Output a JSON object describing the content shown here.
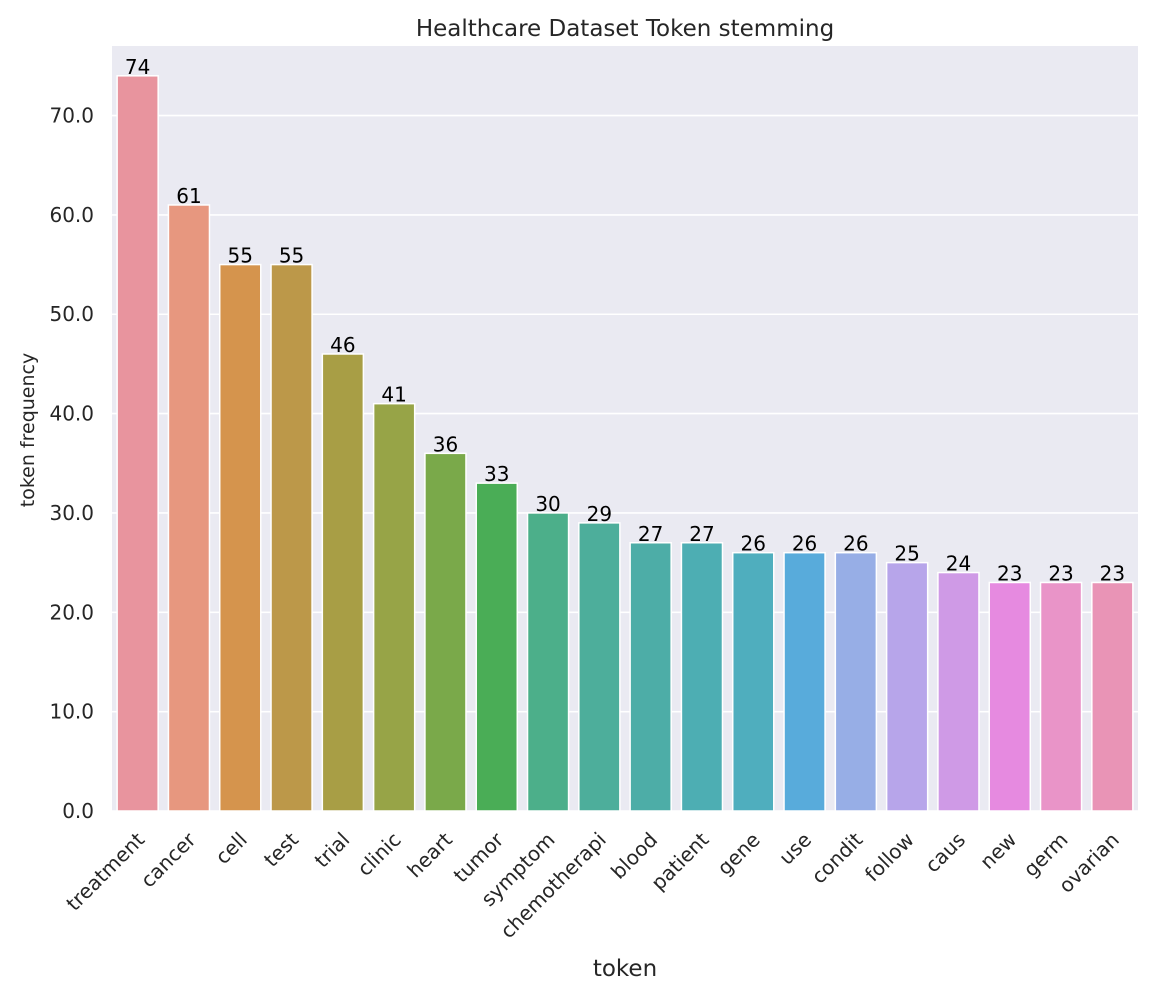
{
  "chart_data": {
    "type": "bar",
    "title": "Healthcare Dataset Token stemming",
    "xlabel": "token",
    "ylabel": "token frequency",
    "categories": [
      "treatment",
      "cancer",
      "cell",
      "test",
      "trial",
      "clinic",
      "heart",
      "tumor",
      "symptom",
      "chemotherapi",
      "blood",
      "patient",
      "gene",
      "use",
      "condit",
      "follow",
      "caus",
      "new",
      "germ",
      "ovarian"
    ],
    "values": [
      74,
      61,
      55,
      55,
      46,
      41,
      36,
      33,
      30,
      29,
      27,
      27,
      26,
      26,
      26,
      25,
      24,
      23,
      23,
      23
    ],
    "data_labels": [
      "74",
      "61",
      "55",
      "55",
      "46",
      "41",
      "36",
      "33",
      "30",
      "29",
      "27",
      "27",
      "26",
      "26",
      "26",
      "25",
      "24",
      "23",
      "23",
      "23"
    ],
    "colors": [
      "#e8949e",
      "#e7977f",
      "#d5944d",
      "#bc9849",
      "#a89e45",
      "#97a447",
      "#7aa94a",
      "#4aad56",
      "#4caf8a",
      "#4dae9b",
      "#4dada7",
      "#4daeb3",
      "#4faebe",
      "#58abdb",
      "#97aee6",
      "#b7a5ea",
      "#cf9ae6",
      "#e68ae0",
      "#e994c8",
      "#e994b6"
    ],
    "yticks": [
      "0.0",
      "10.0",
      "20.0",
      "30.0",
      "40.0",
      "50.0",
      "60.0",
      "70.0"
    ],
    "ylim": [
      0,
      77
    ],
    "grid": true,
    "background": "#eaeaf2"
  }
}
